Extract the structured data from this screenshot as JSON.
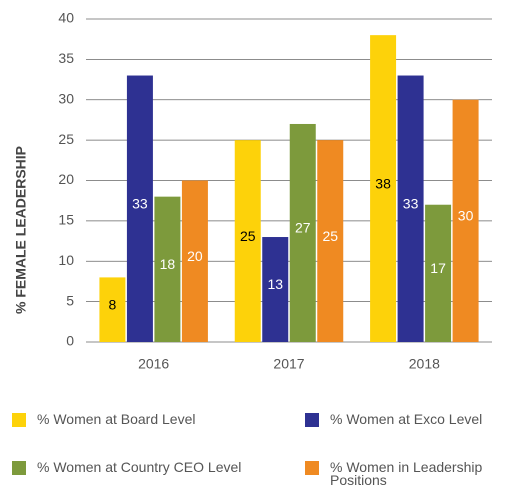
{
  "chart_data": {
    "type": "bar",
    "y_label": "% FEMALE LEADERSHIP",
    "categories": [
      "2016",
      "2017",
      "2018"
    ],
    "series": [
      {
        "name": "% Women at Board Level",
        "color": "#fdd20a",
        "values": [
          8,
          25,
          38
        ]
      },
      {
        "name": "% Women at Exco Level",
        "color": "#2e3192",
        "values": [
          33,
          13,
          33
        ]
      },
      {
        "name": "% Women at Country CEO Level",
        "color": "#7d9a3c",
        "values": [
          18,
          27,
          17
        ]
      },
      {
        "name": "% Women in Leadership Positions",
        "color": "#ef8a22",
        "values": [
          20,
          25,
          30
        ]
      }
    ],
    "ylim": [
      0,
      40
    ],
    "yticks": [
      0,
      5,
      10,
      15,
      20,
      25,
      30,
      35,
      40
    ],
    "grid": true
  }
}
